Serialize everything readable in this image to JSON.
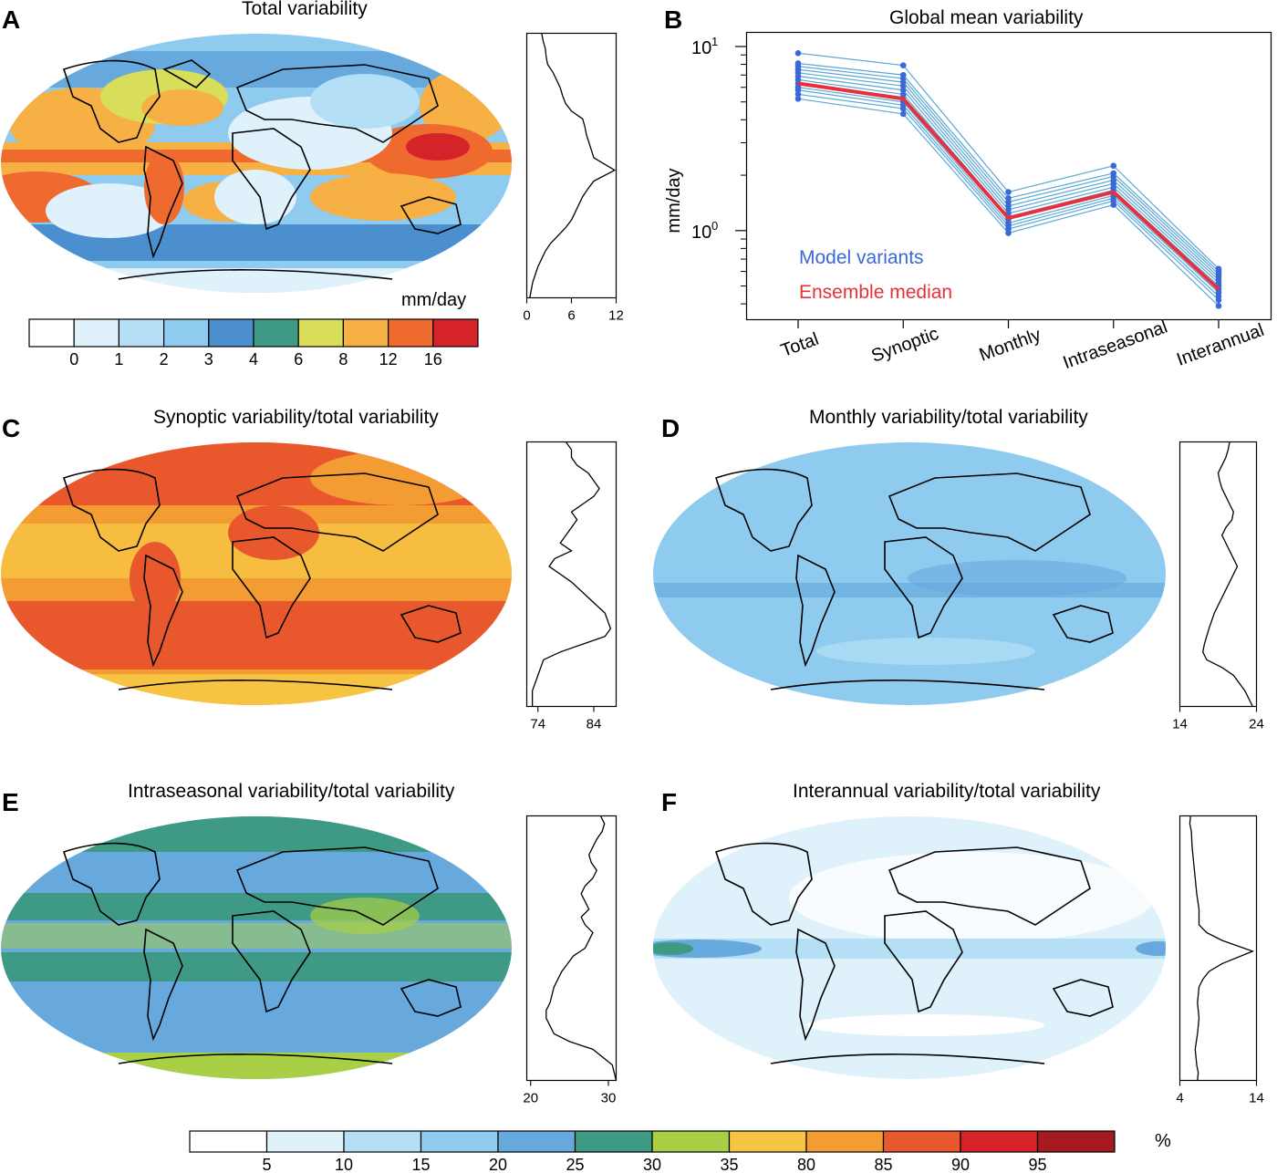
{
  "panels": {
    "A": {
      "label": "A",
      "title": "Total variability"
    },
    "B": {
      "label": "B",
      "title": "Global mean variability"
    },
    "C": {
      "label": "C",
      "title": "Synoptic variability/total variability"
    },
    "D": {
      "label": "D",
      "title": "Monthly variability/total variability"
    },
    "E": {
      "label": "E",
      "title": "Intraseasonal variability/total variability"
    },
    "F": {
      "label": "F",
      "title": "Interannual variability/total variability"
    }
  },
  "colors": {
    "white": "#ffffff",
    "very_light_blue": "#dff1fb",
    "light_blue": "#b5dff5",
    "sky_blue": "#8ecbef",
    "mid_blue": "#67a9dd",
    "deep_blue": "#4b8fcf",
    "teal": "#3e9a84",
    "lime": "#a8cf45",
    "yellow": "#f6c343",
    "orange": "#f39c34",
    "red_orange": "#e9582d",
    "red": "#d6232a",
    "dark_red": "#a51a20",
    "model_line": "#5aa8d8",
    "model_point": "#3a68d8",
    "median": "#e8303a"
  },
  "colorbar_A": {
    "unit": "mm/day",
    "ticks": [
      "0",
      "1",
      "2",
      "3",
      "4",
      "6",
      "8",
      "12",
      "16"
    ],
    "colors": [
      "#ffffff",
      "#dff1fb",
      "#b5dff5",
      "#8ecbef",
      "#4b8fcf",
      "#3e9a84",
      "#d8de5a",
      "#f6b043",
      "#ee6a2e",
      "#d6232a"
    ]
  },
  "colorbar_bottom": {
    "unit": "%",
    "ticks": [
      "5",
      "10",
      "15",
      "20",
      "25",
      "30",
      "35",
      "80",
      "85",
      "90",
      "95"
    ],
    "colors": [
      "#ffffff",
      "#dff1fb",
      "#b5dff5",
      "#8ecbef",
      "#67a9dd",
      "#3e9a84",
      "#a8cf45",
      "#f6c343",
      "#f39c34",
      "#e9582d",
      "#d6232a",
      "#a51a20"
    ]
  },
  "chart_data": [
    {
      "type": "line",
      "panel": "B",
      "title": "Global mean variability",
      "ylabel": "mm/day",
      "yscale": "log",
      "ylim": [
        0.33,
        12
      ],
      "yticks": [
        "10^1",
        "10^0"
      ],
      "categories": [
        "Total",
        "Synoptic",
        "Monthly",
        "Intraseasonal",
        "Interannual"
      ],
      "series": [
        {
          "values": [
            5.2,
            4.3,
            0.97,
            1.38,
            0.39
          ]
        },
        {
          "values": [
            5.5,
            4.6,
            1.02,
            1.45,
            0.42
          ]
        },
        {
          "values": [
            5.8,
            4.8,
            1.06,
            1.5,
            0.44
          ]
        },
        {
          "values": [
            6.0,
            5.0,
            1.1,
            1.55,
            0.46
          ]
        },
        {
          "values": [
            6.3,
            5.3,
            1.15,
            1.6,
            0.48
          ]
        },
        {
          "values": [
            6.6,
            5.5,
            1.19,
            1.66,
            0.5
          ]
        },
        {
          "values": [
            6.9,
            5.8,
            1.24,
            1.72,
            0.52
          ]
        },
        {
          "values": [
            7.2,
            6.1,
            1.3,
            1.8,
            0.54
          ]
        },
        {
          "values": [
            7.5,
            6.4,
            1.36,
            1.88,
            0.56
          ]
        },
        {
          "values": [
            7.8,
            6.7,
            1.43,
            1.97,
            0.58
          ]
        },
        {
          "values": [
            8.1,
            7.0,
            1.5,
            2.05,
            0.6
          ]
        },
        {
          "values": [
            9.2,
            7.9,
            1.62,
            2.25,
            0.62
          ]
        },
        {
          "name": "Ensemble median",
          "values": [
            6.3,
            5.2,
            1.17,
            1.62,
            0.48
          ]
        }
      ],
      "legend": [
        "Model variants",
        "Ensemble median"
      ],
      "legend_placement": "lower-left"
    },
    {
      "type": "line",
      "panel": "A",
      "orientation": "vertical",
      "xticks": [
        "0",
        "6",
        "12"
      ],
      "xlim": [
        0,
        12
      ],
      "x": [
        2.0,
        2.2,
        2.5,
        2.6,
        2.8,
        3.5,
        4.0,
        4.5,
        4.8,
        5.2,
        6.0,
        7.5,
        7.8,
        8.0,
        9.0,
        11.8,
        9.0,
        8.2,
        7.5,
        7.0,
        6.5,
        6.0,
        5.2,
        4.2,
        3.2,
        2.5,
        1.5,
        0.8,
        0.4
      ],
      "y": [
        90,
        85,
        80,
        75,
        70,
        65,
        60,
        55,
        50,
        45,
        40,
        35,
        30,
        25,
        10,
        2,
        -5,
        -10,
        -15,
        -20,
        -25,
        -30,
        -35,
        -40,
        -45,
        -50,
        -60,
        -70,
        -80
      ]
    },
    {
      "type": "line",
      "panel": "C",
      "orientation": "vertical",
      "xticks": [
        "74",
        "84"
      ],
      "xlim": [
        72,
        88
      ],
      "x": [
        79,
        80,
        80,
        81,
        83,
        84,
        85,
        84,
        82,
        80,
        81,
        80,
        79,
        78,
        80,
        77,
        76,
        80,
        83,
        86,
        87,
        86,
        82,
        78,
        75,
        74,
        73,
        73
      ],
      "y": [
        90,
        85,
        80,
        75,
        70,
        65,
        60,
        55,
        50,
        45,
        40,
        35,
        30,
        25,
        20,
        15,
        10,
        0,
        -10,
        -20,
        -30,
        -35,
        -40,
        -45,
        -50,
        -60,
        -70,
        -80
      ]
    },
    {
      "type": "line",
      "panel": "D",
      "orientation": "vertical",
      "xticks": [
        "14",
        "24"
      ],
      "xlim": [
        14,
        24
      ],
      "x": [
        20.5,
        20.3,
        20,
        19.5,
        19,
        19.2,
        19.5,
        20,
        20.5,
        21,
        20.8,
        20,
        19.5,
        20,
        20.5,
        21.5,
        20.5,
        19.5,
        18.5,
        17.8,
        17.5,
        17.2,
        17.0,
        17.5,
        19.5,
        21.0,
        22.5,
        23.5
      ],
      "y": [
        90,
        85,
        80,
        75,
        70,
        65,
        60,
        55,
        50,
        45,
        40,
        35,
        30,
        25,
        20,
        10,
        0,
        -10,
        -20,
        -30,
        -35,
        -40,
        -45,
        -50,
        -55,
        -60,
        -70,
        -80
      ]
    },
    {
      "type": "line",
      "panel": "E",
      "orientation": "vertical",
      "xticks": [
        "20",
        "30"
      ],
      "xlim": [
        19.5,
        31
      ],
      "x": [
        29,
        29.5,
        29.2,
        28.5,
        28,
        27.5,
        27.8,
        28.5,
        28,
        27,
        26.5,
        27,
        27.5,
        26.5,
        27,
        28,
        27,
        25.5,
        24,
        23,
        22.5,
        22,
        22,
        22.5,
        23,
        25,
        28,
        30.5,
        31
      ],
      "y": [
        90,
        85,
        80,
        75,
        70,
        65,
        60,
        55,
        50,
        45,
        40,
        35,
        30,
        25,
        20,
        15,
        5,
        0,
        -10,
        -20,
        -30,
        -35,
        -40,
        -45,
        -50,
        -55,
        -60,
        -70,
        -80
      ]
    },
    {
      "type": "line",
      "panel": "F",
      "orientation": "vertical",
      "xticks": [
        "4",
        "14"
      ],
      "xlim": [
        4,
        14
      ],
      "x": [
        5.4,
        5.3,
        5.5,
        5.6,
        5.8,
        6.0,
        6.2,
        6.5,
        6.5,
        7.5,
        9.5,
        13.5,
        9.5,
        7.8,
        7.0,
        6.5,
        6.3,
        6.5,
        6.3,
        6.0,
        6.2,
        6.4,
        6.3
      ],
      "y": [
        90,
        85,
        80,
        70,
        60,
        50,
        40,
        30,
        20,
        15,
        10,
        3,
        -5,
        -10,
        -15,
        -20,
        -30,
        -40,
        -50,
        -60,
        -70,
        -75,
        -80
      ]
    }
  ]
}
